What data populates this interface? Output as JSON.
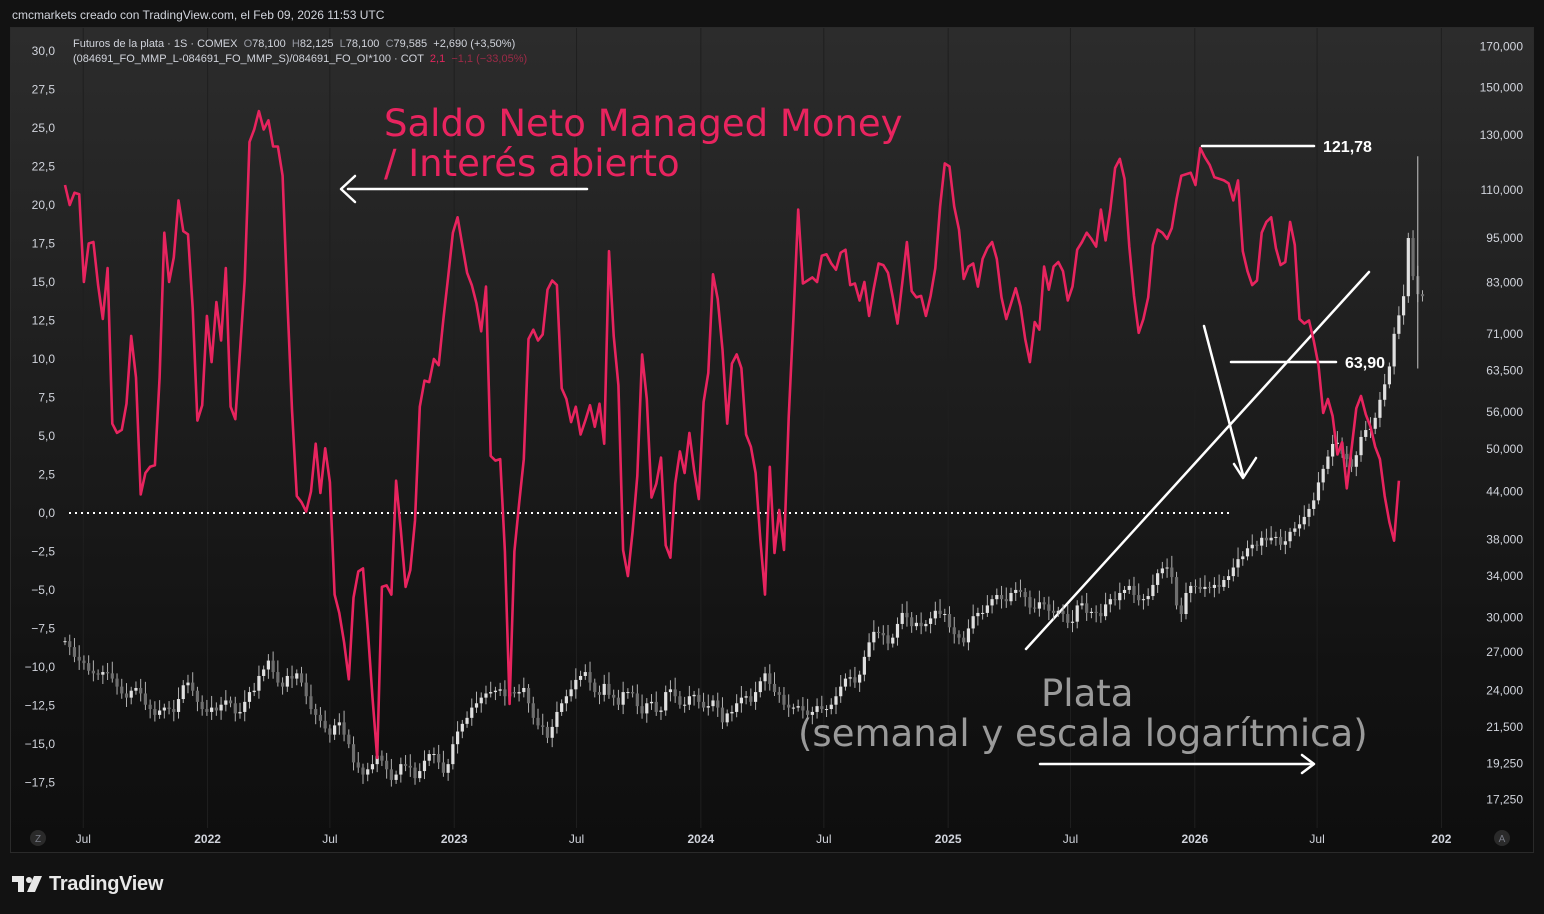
{
  "header": {
    "caption": "cmcmarkets creado con TradingView.com, el Feb 09, 2026 11:53 UTC"
  },
  "legend": {
    "line1": {
      "symbol": "Futuros de la plata · 1S · COMEX",
      "o_label": "O",
      "o_value": "78,100",
      "h_label": "H",
      "h_value": "82,125",
      "l_label": "L",
      "l_value": "78,100",
      "c_label": "C",
      "c_value": "79,585",
      "change": "+2,690 (+3,50%)"
    },
    "line2": {
      "formula": "(084691_FO_MMP_L-084691_FO_MMP_S)/084691_FO_OI*100 · COT",
      "value": "2,1",
      "change": "−1,1 (−33,05%)"
    }
  },
  "annotations": {
    "managed_money_line1": "Saldo Neto Managed Money",
    "managed_money_line2": "/ Interés abierto",
    "silver_line1": "Plata",
    "silver_line2": "(semanal y escala logarítmica)",
    "high_label": "121,78",
    "low_label": "63,90"
  },
  "footer": {
    "brand": "TradingView"
  },
  "colors": {
    "cot_line": "#e8245f",
    "candles": "#b0b0b0",
    "annotation_text": "#9a9a9a",
    "axis_text": "#d1d4dc",
    "background": "#121212"
  },
  "icons": {
    "timezone": "Z",
    "auto_scale": "A",
    "logo": "tradingview-logo-icon"
  },
  "chart_data": [
    {
      "type": "line",
      "name": "Saldo Neto Managed Money / Interés abierto (COT)",
      "axis": "left",
      "ylim": [
        -18.5,
        31
      ],
      "yticks": [
        "30,0",
        "27,5",
        "25,0",
        "22,5",
        "20,0",
        "17,5",
        "15,0",
        "12,5",
        "10,0",
        "7,5",
        "5,0",
        "2,5",
        "0,0",
        "−2,5",
        "−5,0",
        "−7,5",
        "−10,0",
        "−12,5",
        "−15,0",
        "−17,5"
      ],
      "reference_line": 0.0,
      "x_start": "2021-06-04",
      "x_step_days": 7,
      "values": [
        21.3,
        20.0,
        20.8,
        20.7,
        15.0,
        17.5,
        17.6,
        14.8,
        12.6,
        15.9,
        5.8,
        5.2,
        5.4,
        7.1,
        11.5,
        8.8,
        1.2,
        2.6,
        3.0,
        3.1,
        8.8,
        18.2,
        15.0,
        16.6,
        20.3,
        18.3,
        18.1,
        13.3,
        6.0,
        7.0,
        12.8,
        9.8,
        13.7,
        11.2,
        15.9,
        6.9,
        6.1,
        10.5,
        15.1,
        24.1,
        24.9,
        26.1,
        24.9,
        25.5,
        23.8,
        23.8,
        21.9,
        13.9,
        6.7,
        1.1,
        0.7,
        0.1,
        1.4,
        4.5,
        1.3,
        4.2,
        2.0,
        -5.3,
        -6.5,
        -8.4,
        -10.8,
        -5.5,
        -3.8,
        -3.6,
        -7.5,
        -12.0,
        -15.9,
        -4.8,
        -4.7,
        -5.3,
        2.1,
        -1.1,
        -4.8,
        -3.7,
        -0.5,
        6.9,
        8.6,
        8.5,
        10.0,
        9.6,
        12.6,
        15.3,
        18.2,
        19.2,
        17.4,
        15.6,
        14.8,
        13.6,
        11.8,
        14.7,
        3.7,
        3.4,
        3.5,
        -2.5,
        -12.4,
        -2.5,
        0.6,
        3.5,
        11.3,
        11.9,
        11.2,
        11.6,
        14.5,
        15.1,
        14.8,
        8.1,
        7.4,
        5.9,
        6.9,
        5.1,
        6.0,
        7.0,
        5.6,
        7.1,
        4.5,
        17.0,
        11.5,
        8.3,
        -2.4,
        -4.1,
        -1.2,
        2.4,
        10.3,
        7.4,
        1.0,
        1.9,
        3.6,
        -2.1,
        -2.9,
        1.9,
        4.0,
        2.6,
        5.2,
        2.8,
        0.9,
        7.2,
        9.1,
        15.5,
        13.9,
        10.6,
        5.8,
        9.7,
        10.3,
        9.4,
        5.1,
        4.3,
        2.6,
        -1.7,
        -5.3,
        3.0,
        -2.6,
        0.2,
        -2.4,
        6.2,
        12.6,
        19.7,
        14.9,
        15.1,
        15.3,
        15.0,
        16.7,
        16.8,
        16.2,
        15.8,
        16.9,
        17.1,
        14.8,
        14.9,
        13.8,
        15.0,
        12.8,
        14.6,
        16.2,
        16.1,
        15.6,
        14.0,
        12.3,
        14.9,
        17.6,
        14.4,
        14.0,
        14.1,
        12.8,
        14.1,
        15.9,
        19.9,
        22.7,
        22.5,
        19.9,
        18.4,
        15.2,
        16.0,
        16.2,
        14.7,
        16.5,
        17.2,
        17.6,
        16.5,
        14.0,
        12.6,
        13.6,
        14.6,
        13.4,
        11.3,
        9.8,
        12.4,
        11.9,
        16.0,
        14.5,
        16.0,
        16.3,
        15.7,
        13.8,
        14.7,
        17.1,
        17.6,
        18.2,
        17.8,
        17.3,
        19.7,
        17.7,
        19.7,
        22.4,
        23.0,
        21.7,
        17.3,
        14.1,
        11.7,
        12.6,
        14.0,
        17.4,
        18.4,
        18.2,
        17.8,
        18.5,
        20.4,
        21.9,
        22.0,
        22.1,
        21.3,
        23.7,
        23.1,
        22.6,
        21.8,
        21.7,
        21.6,
        21.4,
        20.3,
        21.6,
        17.0,
        15.7,
        14.8,
        15.1,
        18.2,
        18.9,
        19.2,
        17.2,
        16.1,
        16.3,
        18.9,
        17.4,
        12.6,
        12.3,
        12.5,
        11.2,
        9.6,
        6.5,
        7.4,
        6.3,
        3.8,
        4.6,
        1.6,
        4.2,
        6.8,
        7.6,
        6.4,
        5.6,
        4.3,
        3.5,
        1.1,
        -0.6,
        -1.8,
        2.1
      ]
    },
    {
      "type": "candlestick",
      "name": "Futuros de la plata · 1S · COMEX",
      "axis": "right",
      "scale": "log",
      "ylim": [
        16500,
        175000
      ],
      "yticks": [
        "170,000",
        "150,000",
        "130,000",
        "110,000",
        "95,000",
        "83,000",
        "71,000",
        "63,500",
        "56,000",
        "50,000",
        "44,000",
        "38,000",
        "34,000",
        "30,000",
        "27,000",
        "24,000",
        "21,500",
        "19,250",
        "17,250"
      ],
      "x_start": "2021-06-04",
      "x_step_days": 7,
      "closes": [
        27.9,
        27.4,
        26.6,
        26.3,
        26.1,
        25.5,
        25.3,
        25.2,
        25.4,
        25.3,
        24.9,
        24.3,
        23.8,
        23.5,
        24.0,
        24.2,
        23.8,
        23.0,
        22.7,
        22.3,
        22.6,
        22.8,
        22.7,
        22.5,
        23.4,
        24.4,
        24.6,
        24.0,
        23.2,
        22.7,
        22.5,
        22.8,
        22.6,
        23.0,
        23.3,
        23.1,
        22.4,
        22.5,
        23.2,
        23.9,
        24.0,
        25.1,
        25.6,
        26.3,
        25.4,
        24.6,
        24.3,
        25.1,
        24.9,
        25.3,
        24.6,
        23.6,
        22.7,
        22.3,
        21.9,
        21.4,
        21.0,
        21.6,
        21.8,
        21.0,
        20.4,
        19.3,
        19.0,
        18.6,
        18.9,
        19.2,
        19.7,
        19.4,
        18.9,
        18.3,
        18.6,
        19.2,
        19.1,
        19.0,
        18.4,
        18.8,
        19.4,
        19.8,
        19.8,
        19.3,
        18.7,
        19.2,
        20.4,
        21.2,
        21.7,
        22.1,
        22.8,
        23.1,
        23.5,
        23.8,
        23.9,
        24.0,
        24.1,
        23.6,
        23.9,
        23.8,
        23.9,
        24.2,
        23.1,
        22.1,
        21.6,
        21.5,
        20.8,
        21.5,
        22.5,
        23.1,
        23.6,
        24.1,
        24.8,
        25.1,
        25.4,
        24.6,
        23.9,
        23.7,
        24.5,
        23.7,
        23.5,
        23.0,
        23.9,
        23.9,
        23.8,
        22.9,
        22.4,
        23.1,
        23.2,
        22.5,
        22.6,
        23.9,
        24.1,
        23.6,
        23.0,
        23.0,
        23.6,
        23.7,
        23.2,
        22.8,
        22.9,
        23.3,
        22.8,
        21.8,
        22.4,
        22.5,
        23.1,
        23.5,
        23.6,
        23.2,
        23.9,
        24.7,
        25.3,
        24.5,
        23.9,
        23.7,
        23.0,
        22.8,
        22.8,
        22.9,
        22.6,
        22.3,
        22.5,
        22.9,
        22.7,
        22.7,
        23.0,
        23.6,
        24.3,
        24.9,
        25.0,
        24.6,
        25.2,
        26.6,
        27.8,
        28.7,
        28.6,
        28.4,
        27.7,
        28.2,
        29.4,
        30.4,
        30.0,
        29.2,
        29.5,
        29.2,
        29.4,
        29.9,
        30.6,
        30.3,
        30.3,
        29.1,
        28.5,
        28.2,
        27.8,
        29.0,
        30.1,
        30.4,
        30.4,
        31.1,
        31.7,
        32.1,
        31.7,
        31.5,
        32.3,
        32.6,
        32.4,
        31.9,
        30.9,
        30.8,
        31.4,
        31.2,
        30.6,
        30.4,
        30.6,
        30.3,
        29.5,
        29.6,
        31.1,
        31.3,
        30.4,
        30.5,
        30.4,
        30.1,
        31.2,
        31.7,
        31.6,
        32.3,
        32.6,
        33.0,
        32.1,
        31.6,
        31.7,
        32.0,
        33.1,
        34.3,
        34.8,
        34.9,
        33.9,
        31.1,
        30.3,
        32.3,
        33.0,
        32.9,
        32.7,
        32.9,
        32.8,
        33.1,
        32.9,
        33.6,
        34.0,
        34.9,
        35.8,
        36.1,
        37.0,
        37.4,
        37.3,
        38.2,
        37.9,
        38.2,
        38.3,
        37.4,
        37.8,
        38.9,
        39.3,
        39.8,
        40.7,
        41.7,
        42.8,
        45.2,
        47.1,
        48.9,
        50.8,
        51.0,
        49.3,
        48.5,
        47.4,
        49.1,
        51.9,
        53.0,
        53.2,
        55.0,
        58.1,
        60.9,
        64.3,
        71.0,
        75.1,
        79.6,
        95.0,
        84.6,
        80.1,
        79.6
      ]
    }
  ],
  "time_axis": {
    "labels": [
      "Jul",
      "2022",
      "Jul",
      "2023",
      "Jul",
      "2024",
      "Jul",
      "2025",
      "Jul",
      "2026",
      "Jul",
      "202"
    ],
    "dates": [
      "2021-07-01",
      "2022-01-01",
      "2022-07-01",
      "2023-01-01",
      "2023-07-01",
      "2024-01-01",
      "2024-07-01",
      "2025-01-01",
      "2025-07-01",
      "2026-01-01",
      "2026-07-01",
      "2027-01-01"
    ]
  }
}
